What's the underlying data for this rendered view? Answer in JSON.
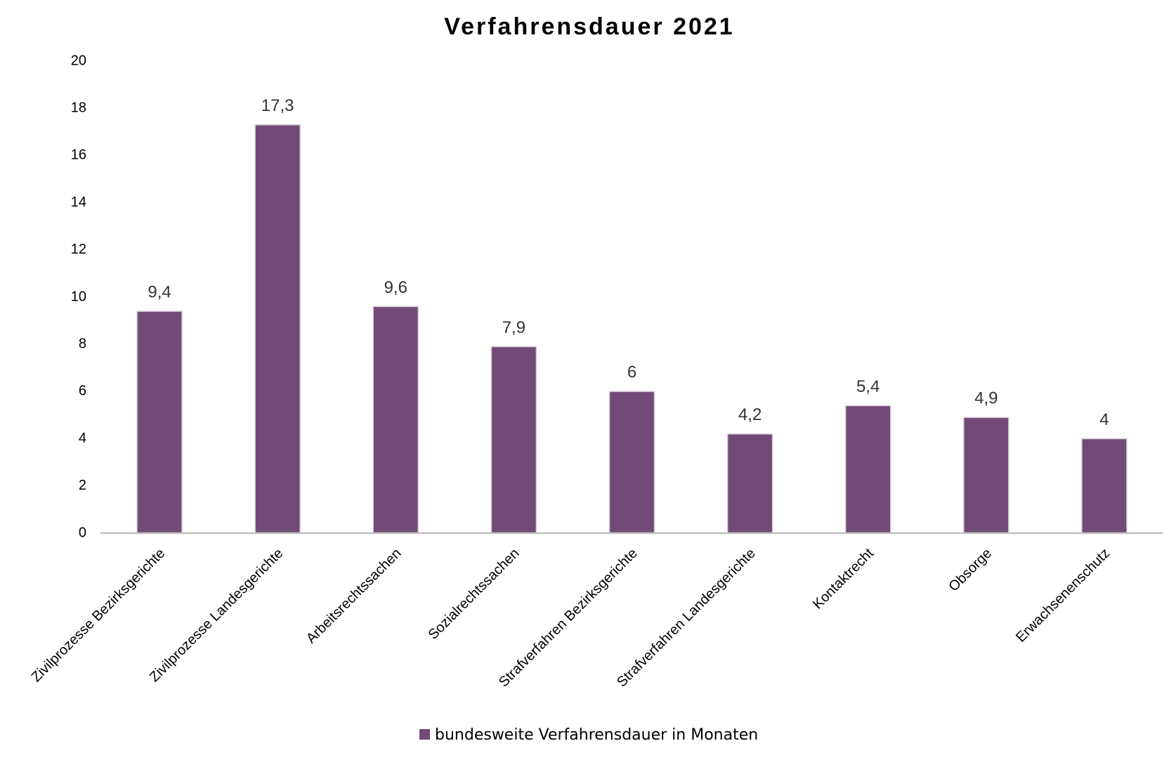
{
  "chart_data": {
    "type": "bar",
    "title": "Verfahrensdauer 2021",
    "categories": [
      "Zivilprozesse Bezirksgerichte",
      "Zivilprozesse Landesgerichte",
      "Arbeitsrechtssachen",
      "Sozialrechtssachen",
      "Strafverfahren Bezirksgerichte",
      "Strafverfahren Landesgerichte",
      "Kontaktrecht",
      "Obsorge",
      "Erwachsenenschutz"
    ],
    "series": [
      {
        "name": "bundesweite Verfahrensdauer in Monaten",
        "color": "#714a76",
        "values": [
          9.4,
          17.3,
          9.6,
          7.9,
          6,
          4.2,
          5.4,
          4.9,
          4
        ],
        "value_labels": [
          "9,4",
          "17,3",
          "9,6",
          "7,9",
          "6",
          "4,2",
          "5,4",
          "4,9",
          "4"
        ]
      }
    ],
    "ylim": [
      0,
      20
    ],
    "yticks": [
      0,
      2,
      4,
      6,
      8,
      10,
      12,
      14,
      16,
      18,
      20
    ],
    "grid": false,
    "legend": "bottom"
  }
}
